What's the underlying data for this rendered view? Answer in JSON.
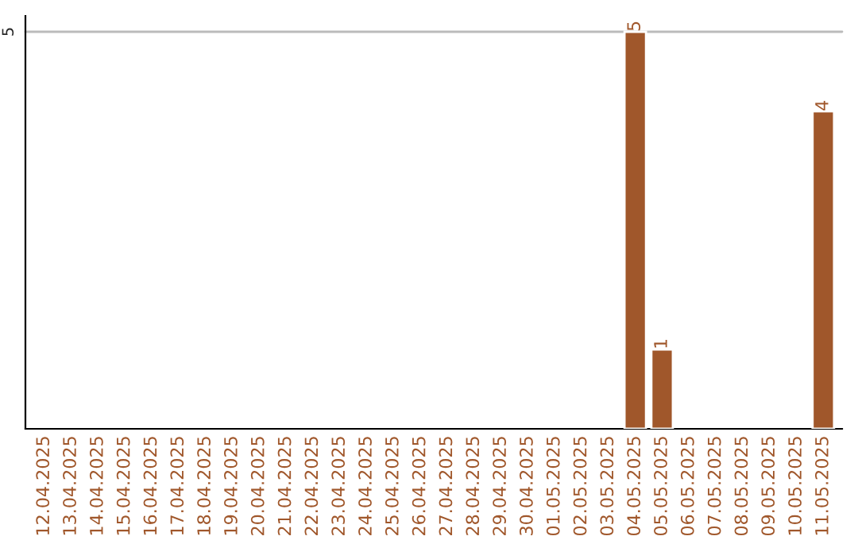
{
  "chart_data": {
    "type": "bar",
    "categories": [
      "12.04.2025",
      "13.04.2025",
      "14.04.2025",
      "15.04.2025",
      "16.04.2025",
      "17.04.2025",
      "18.04.2025",
      "19.04.2025",
      "20.04.2025",
      "21.04.2025",
      "22.04.2025",
      "23.04.2025",
      "24.04.2025",
      "25.04.2025",
      "26.04.2025",
      "27.04.2025",
      "28.04.2025",
      "29.04.2025",
      "30.04.2025",
      "01.05.2025",
      "02.05.2025",
      "03.05.2025",
      "04.05.2025",
      "05.05.2025",
      "06.05.2025",
      "07.05.2025",
      "08.05.2025",
      "09.05.2025",
      "10.05.2025",
      "11.05.2025"
    ],
    "values": [
      null,
      null,
      null,
      null,
      null,
      null,
      null,
      null,
      null,
      null,
      null,
      null,
      null,
      null,
      null,
      null,
      null,
      null,
      null,
      null,
      null,
      null,
      5,
      1,
      null,
      null,
      null,
      null,
      null,
      4
    ],
    "color": "#a0572b",
    "ylim": [
      0,
      5.2
    ],
    "yticks": [
      5
    ],
    "grid": "y",
    "data_labels": true
  }
}
